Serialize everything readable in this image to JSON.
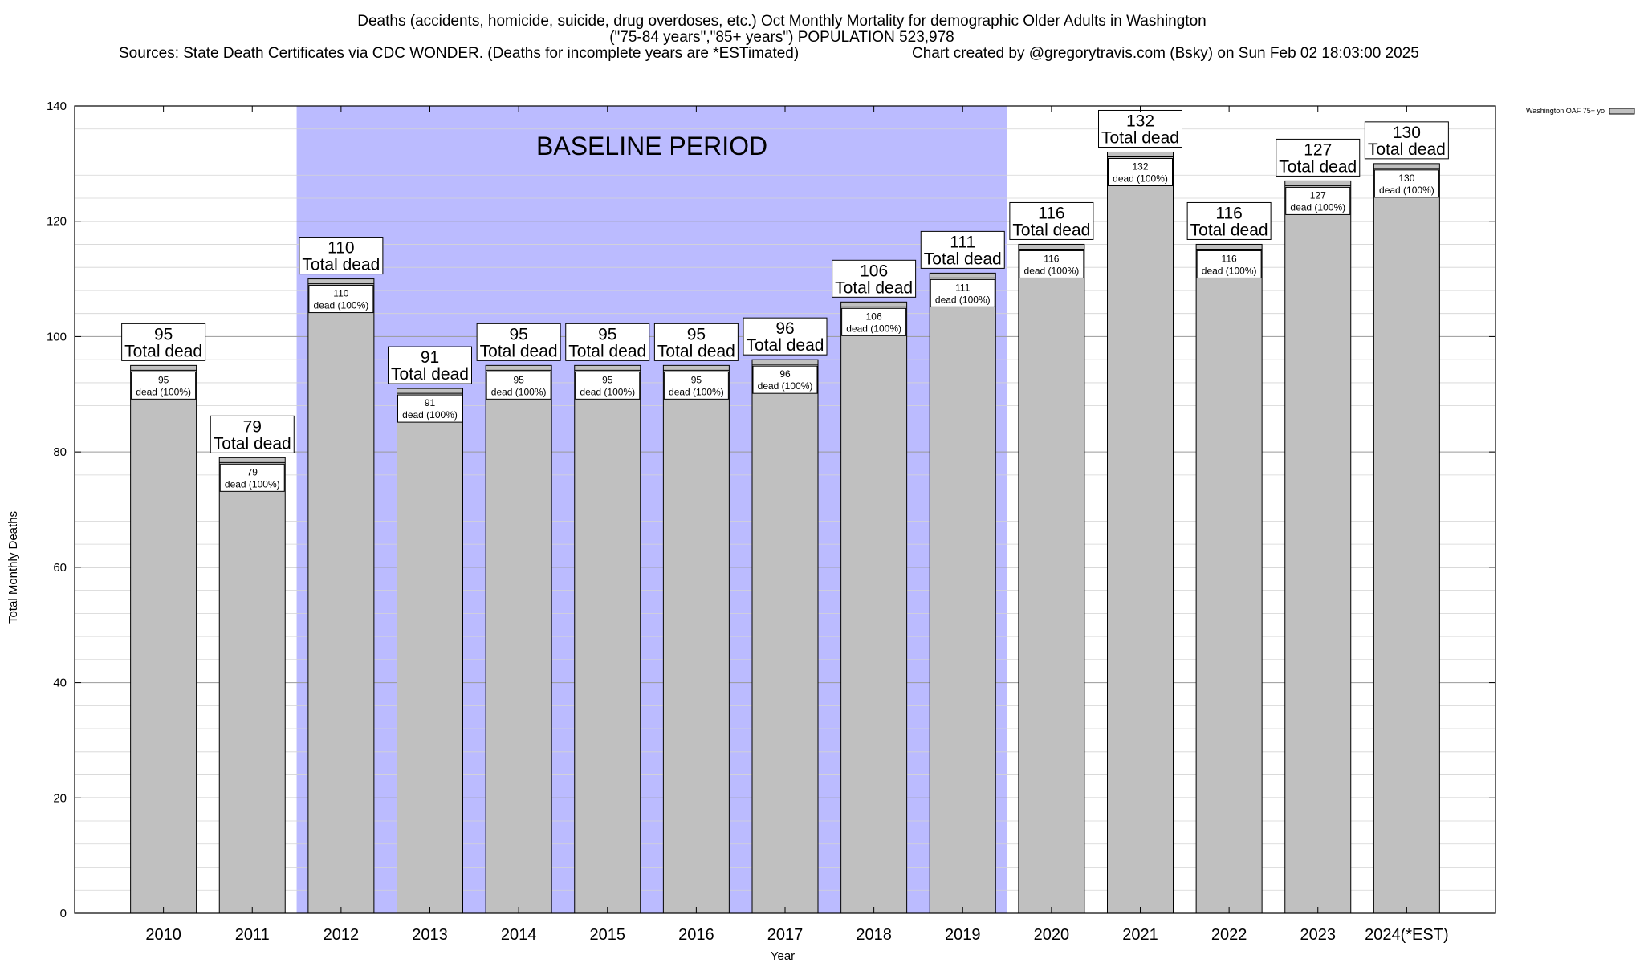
{
  "chart_data": {
    "type": "bar",
    "title_lines": [
      "Deaths (accidents, homicide, suicide, drug overdoses, etc.) Oct Monthly Mortality for demographic Older Adults in Washington",
      "(\"75-84 years\",\"85+ years\") POPULATION 523,978"
    ],
    "sources": "Sources: State Death Certificates via CDC WONDER. (Deaths for incomplete years are *ESTimated)",
    "credit": "Chart created by @gregorytravis.com (Bsky) on Sun Feb 02 18:03:00 2025",
    "xlabel": "Year",
    "ylabel": "Total Monthly Deaths",
    "ylim": [
      0,
      140
    ],
    "yticks": [
      0,
      20,
      40,
      60,
      80,
      100,
      120,
      140
    ],
    "minor_grid_step": 4,
    "grid": true,
    "categories": [
      "2010",
      "2011",
      "2012",
      "2013",
      "2014",
      "2015",
      "2016",
      "2017",
      "2018",
      "2019",
      "2020",
      "2021",
      "2022",
      "2023",
      "2024(*EST)"
    ],
    "series": [
      {
        "name": "Washington OAF 75+ yo",
        "values": [
          95,
          79,
          110,
          91,
          95,
          95,
          95,
          96,
          106,
          111,
          116,
          132,
          116,
          127,
          130
        ],
        "color": "#c0c0c0"
      }
    ],
    "total_label_suffix": "Total dead",
    "inner_label_suffix": "dead (100%)",
    "baseline": {
      "label": "BASELINE PERIOD",
      "start": "2012",
      "end": "2019",
      "color": "#bbbbff"
    },
    "legend_position": "top-right"
  }
}
